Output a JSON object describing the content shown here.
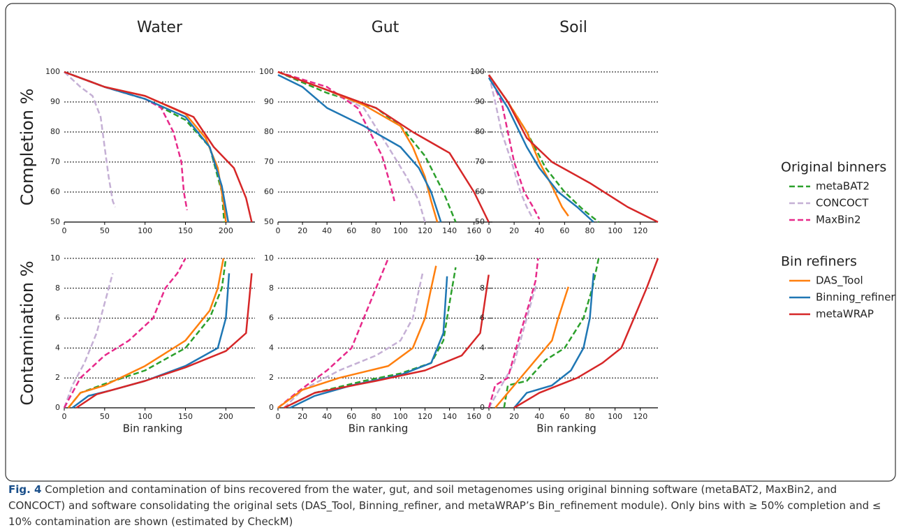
{
  "chart_data": [
    {
      "type": "line",
      "title": "Water",
      "ylabel": "Completion %",
      "xlim": [
        0,
        236
      ],
      "xticks": [
        0,
        50,
        100,
        150,
        200
      ],
      "ylim": [
        50,
        100
      ],
      "yticks": [
        50,
        60,
        70,
        80,
        90,
        100
      ],
      "grid": true,
      "series": [
        {
          "name": "metaBAT2",
          "color": "#2ca02c",
          "dashed": true,
          "x": [
            0,
            50,
            100,
            150,
            180,
            195,
            198
          ],
          "values": [
            100,
            95,
            91,
            84,
            75,
            60,
            50
          ]
        },
        {
          "name": "CONCOCT",
          "color": "#c5b0d5",
          "dashed": true,
          "x": [
            0,
            20,
            35,
            45,
            50,
            55,
            60,
            63
          ],
          "values": [
            100,
            95,
            92,
            85,
            75,
            65,
            57,
            55
          ]
        },
        {
          "name": "MaxBin2",
          "color": "#e7298a",
          "dashed": true,
          "x": [
            0,
            50,
            100,
            120,
            135,
            145,
            148,
            152
          ],
          "values": [
            100,
            95,
            91,
            88,
            80,
            70,
            60,
            54
          ]
        },
        {
          "name": "DAS_Tool",
          "color": "#ff7f0e",
          "dashed": false,
          "x": [
            0,
            50,
            100,
            150,
            175,
            190,
            198,
            200
          ],
          "values": [
            100,
            95,
            92,
            86,
            78,
            68,
            55,
            50
          ]
        },
        {
          "name": "Binning_refiner",
          "color": "#1f77b4",
          "dashed": false,
          "x": [
            0,
            50,
            100,
            150,
            180,
            195,
            203
          ],
          "values": [
            100,
            95,
            91,
            85,
            75,
            62,
            50
          ]
        },
        {
          "name": "metaWRAP",
          "color": "#d62728",
          "dashed": false,
          "x": [
            0,
            50,
            100,
            160,
            185,
            210,
            225,
            232
          ],
          "values": [
            100,
            95,
            92,
            85,
            75,
            68,
            58,
            50
          ]
        }
      ]
    },
    {
      "type": "line",
      "title": "Gut",
      "xlim": [
        0,
        175
      ],
      "xticks": [
        0,
        20,
        40,
        60,
        80,
        100,
        120,
        140,
        160
      ],
      "ylim": [
        50,
        100
      ],
      "yticks": [
        50,
        60,
        70,
        80,
        90,
        100
      ],
      "grid": true,
      "series": [
        {
          "name": "metaBAT2",
          "color": "#2ca02c",
          "dashed": true,
          "x": [
            0,
            40,
            80,
            100,
            120,
            135,
            145
          ],
          "values": [
            100,
            93,
            88,
            82,
            72,
            60,
            50
          ]
        },
        {
          "name": "CONCOCT",
          "color": "#c5b0d5",
          "dashed": true,
          "x": [
            0,
            40,
            70,
            90,
            105,
            115,
            120
          ],
          "values": [
            100,
            94,
            88,
            75,
            65,
            57,
            50
          ]
        },
        {
          "name": "MaxBin2",
          "color": "#e7298a",
          "dashed": true,
          "x": [
            0,
            40,
            65,
            75,
            85,
            92,
            95
          ],
          "values": [
            100,
            95,
            88,
            80,
            72,
            62,
            57
          ]
        },
        {
          "name": "DAS_Tool",
          "color": "#ff7f0e",
          "dashed": false,
          "x": [
            0,
            40,
            70,
            100,
            110,
            120,
            125,
            130
          ],
          "values": [
            100,
            94,
            89,
            82,
            75,
            65,
            57,
            50
          ]
        },
        {
          "name": "Binning_refiner",
          "color": "#1f77b4",
          "dashed": false,
          "x": [
            0,
            20,
            40,
            70,
            100,
            115,
            125,
            133
          ],
          "values": [
            99,
            95,
            88,
            82,
            75,
            68,
            60,
            50
          ]
        },
        {
          "name": "metaWRAP",
          "color": "#d62728",
          "dashed": false,
          "x": [
            0,
            40,
            80,
            110,
            140,
            160,
            172
          ],
          "values": [
            100,
            94,
            88,
            80,
            73,
            60,
            50
          ]
        }
      ]
    },
    {
      "type": "line",
      "title": "Soil",
      "xlim": [
        0,
        134
      ],
      "xticks": [
        0,
        20,
        40,
        60,
        80,
        100,
        120
      ],
      "ylim": [
        50,
        100
      ],
      "yticks": [
        50,
        60,
        70,
        80,
        90,
        100
      ],
      "grid": true,
      "series": [
        {
          "name": "metaBAT2",
          "color": "#2ca02c",
          "dashed": true,
          "x": [
            0,
            15,
            30,
            45,
            60,
            75,
            87
          ],
          "values": [
            99,
            90,
            80,
            68,
            60,
            54,
            50
          ]
        },
        {
          "name": "CONCOCT",
          "color": "#c5b0d5",
          "dashed": true,
          "x": [
            0,
            5,
            10,
            18,
            25,
            30,
            35
          ],
          "values": [
            99,
            90,
            80,
            70,
            60,
            55,
            51
          ]
        },
        {
          "name": "MaxBin2",
          "color": "#e7298a",
          "dashed": true,
          "x": [
            0,
            10,
            15,
            20,
            28,
            35,
            40
          ],
          "values": [
            99,
            90,
            80,
            70,
            60,
            55,
            51
          ]
        },
        {
          "name": "DAS_Tool",
          "color": "#ff7f0e",
          "dashed": false,
          "x": [
            0,
            15,
            30,
            40,
            50,
            58,
            63
          ],
          "values": [
            99,
            90,
            80,
            70,
            62,
            55,
            52
          ]
        },
        {
          "name": "Binning_refiner",
          "color": "#1f77b4",
          "dashed": false,
          "x": [
            0,
            15,
            30,
            40,
            55,
            70,
            83
          ],
          "values": [
            98,
            88,
            75,
            68,
            60,
            55,
            50
          ]
        },
        {
          "name": "metaWRAP",
          "color": "#d62728",
          "dashed": false,
          "x": [
            0,
            15,
            30,
            50,
            80,
            110,
            134
          ],
          "values": [
            99,
            90,
            78,
            70,
            63,
            55,
            50
          ]
        }
      ]
    },
    {
      "type": "line",
      "ylabel": "Contamination %",
      "xlabel": "Bin ranking",
      "xlim": [
        0,
        236
      ],
      "xticks": [
        0,
        50,
        100,
        150,
        200
      ],
      "ylim": [
        0,
        10
      ],
      "yticks": [
        0,
        2,
        4,
        6,
        8,
        10
      ],
      "grid": true,
      "series": [
        {
          "name": "metaBAT2",
          "color": "#2ca02c",
          "dashed": true,
          "x": [
            5,
            20,
            50,
            100,
            150,
            180,
            195,
            200
          ],
          "values": [
            0,
            1,
            1.6,
            2.5,
            4,
            6,
            8,
            10
          ]
        },
        {
          "name": "CONCOCT",
          "color": "#c5b0d5",
          "dashed": true,
          "x": [
            0,
            10,
            25,
            40,
            50,
            60
          ],
          "values": [
            0,
            1.5,
            3,
            5,
            7,
            9
          ]
        },
        {
          "name": "MaxBin2",
          "color": "#e7298a",
          "dashed": true,
          "x": [
            0,
            20,
            50,
            80,
            110,
            125,
            140,
            150
          ],
          "values": [
            0,
            2,
            3.5,
            4.5,
            6,
            8,
            9,
            10
          ]
        },
        {
          "name": "DAS_Tool",
          "color": "#ff7f0e",
          "dashed": false,
          "x": [
            5,
            20,
            50,
            100,
            150,
            180,
            190,
            197
          ],
          "values": [
            0,
            1,
            1.5,
            2.8,
            4.5,
            6.5,
            8,
            10
          ]
        },
        {
          "name": "Binning_refiner",
          "color": "#1f77b4",
          "dashed": false,
          "x": [
            10,
            30,
            60,
            100,
            150,
            190,
            200,
            204
          ],
          "values": [
            0,
            0.8,
            1.2,
            1.8,
            2.8,
            4,
            6,
            9
          ]
        },
        {
          "name": "metaWRAP",
          "color": "#d62728",
          "dashed": false,
          "x": [
            15,
            40,
            100,
            150,
            200,
            225,
            232
          ],
          "values": [
            0,
            0.9,
            1.8,
            2.7,
            3.8,
            5,
            9
          ]
        }
      ]
    },
    {
      "type": "line",
      "xlabel": "Bin ranking",
      "xlim": [
        0,
        175
      ],
      "xticks": [
        0,
        20,
        40,
        60,
        80,
        100,
        120,
        140,
        160
      ],
      "ylim": [
        0,
        10
      ],
      "yticks": [
        0,
        2,
        4,
        6,
        8,
        10
      ],
      "grid": true,
      "series": [
        {
          "name": "metaBAT2",
          "color": "#2ca02c",
          "dashed": true,
          "x": [
            5,
            30,
            70,
            100,
            125,
            135,
            140,
            145
          ],
          "values": [
            0,
            1,
            1.8,
            2.3,
            3,
            4.5,
            7,
            9.4
          ]
        },
        {
          "name": "CONCOCT",
          "color": "#c5b0d5",
          "dashed": true,
          "x": [
            5,
            20,
            50,
            80,
            100,
            110,
            118
          ],
          "values": [
            0,
            1.2,
            2.5,
            3.5,
            4.5,
            6,
            9
          ]
        },
        {
          "name": "MaxBin2",
          "color": "#e7298a",
          "dashed": true,
          "x": [
            0,
            15,
            40,
            60,
            70,
            80,
            90
          ],
          "values": [
            0,
            1,
            2.5,
            4,
            6,
            8,
            10
          ]
        },
        {
          "name": "DAS_Tool",
          "color": "#ff7f0e",
          "dashed": false,
          "x": [
            0,
            20,
            50,
            90,
            110,
            120,
            125,
            129
          ],
          "values": [
            0,
            1.2,
            2,
            2.8,
            4,
            6,
            8,
            9.5
          ]
        },
        {
          "name": "Binning_refiner",
          "color": "#1f77b4",
          "dashed": false,
          "x": [
            10,
            30,
            60,
            100,
            125,
            135,
            138
          ],
          "values": [
            0,
            0.8,
            1.5,
            2.2,
            3,
            5,
            8.8
          ]
        },
        {
          "name": "metaWRAP",
          "color": "#d62728",
          "dashed": false,
          "x": [
            5,
            30,
            80,
            120,
            150,
            165,
            172
          ],
          "values": [
            0,
            1,
            1.8,
            2.5,
            3.5,
            5,
            8.9
          ]
        }
      ]
    },
    {
      "type": "line",
      "xlabel": "Bin ranking",
      "xlim": [
        0,
        134
      ],
      "xticks": [
        0,
        20,
        40,
        60,
        80,
        100,
        120
      ],
      "ylim": [
        0,
        10
      ],
      "yticks": [
        0,
        2,
        4,
        6,
        8,
        10
      ],
      "grid": true,
      "series": [
        {
          "name": "metaBAT2",
          "color": "#2ca02c",
          "dashed": true,
          "x": [
            12,
            15,
            30,
            45,
            60,
            75,
            82,
            87
          ],
          "values": [
            0,
            1.5,
            1.8,
            3.2,
            4,
            6,
            8,
            10
          ]
        },
        {
          "name": "CONCOCT",
          "color": "#c5b0d5",
          "dashed": true,
          "x": [
            0,
            10,
            20,
            30,
            35,
            38
          ],
          "values": [
            0,
            1.5,
            3,
            6,
            7.5,
            8.3
          ]
        },
        {
          "name": "MaxBin2",
          "color": "#e7298a",
          "dashed": true,
          "x": [
            0,
            5,
            15,
            25,
            32,
            37,
            39
          ],
          "values": [
            0,
            1.5,
            2,
            5,
            7,
            8.5,
            10
          ]
        },
        {
          "name": "DAS_Tool",
          "color": "#ff7f0e",
          "dashed": false,
          "x": [
            5,
            15,
            30,
            40,
            50,
            55,
            63
          ],
          "values": [
            0,
            1,
            2.5,
            3.5,
            4.5,
            6,
            8.1
          ]
        },
        {
          "name": "Binning_refiner",
          "color": "#1f77b4",
          "dashed": false,
          "x": [
            20,
            30,
            50,
            65,
            75,
            80,
            83
          ],
          "values": [
            0,
            1,
            1.5,
            2.5,
            4,
            6,
            9
          ]
        },
        {
          "name": "metaWRAP",
          "color": "#d62728",
          "dashed": false,
          "x": [
            20,
            40,
            70,
            90,
            105,
            115,
            125,
            134
          ],
          "values": [
            0,
            1,
            2,
            3,
            4,
            6,
            8,
            10
          ]
        }
      ]
    }
  ],
  "legend": [
    {
      "title": "Original binners"
    },
    {
      "title": "Bin refiners"
    }
  ],
  "caption": {
    "label": "Fig. 4",
    "text": "Completion and contamination of bins recovered from the water, gut, and soil metagenomes using original binning software (metaBAT2, MaxBin2, and CONCOCT) and software consolidating the original sets (DAS_Tool, Binning_refiner, and metaWRAP’s Bin_refinement module). Only bins with ≥ 50% completion and ≤ 10% contamination are shown (estimated by CheckM)"
  }
}
